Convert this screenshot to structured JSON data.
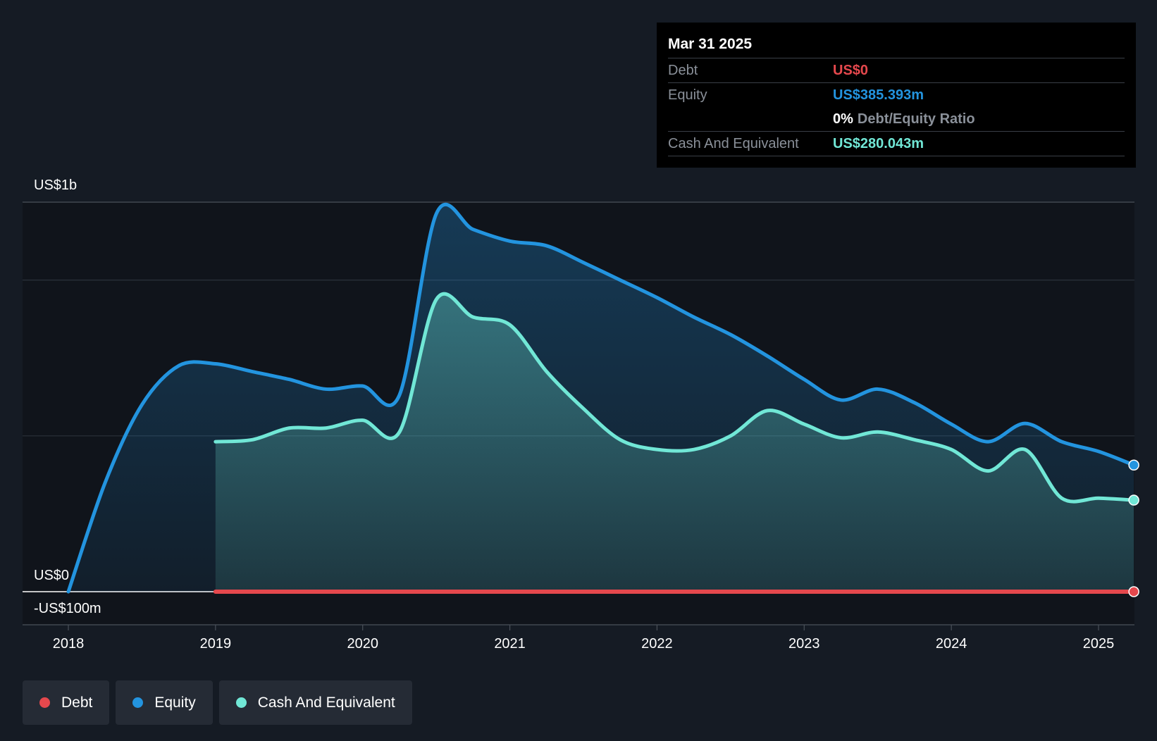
{
  "tooltip": {
    "date": "Mar 31 2025",
    "debt_label": "Debt",
    "debt_value": "US$0",
    "equity_label": "Equity",
    "equity_value": "US$385.393m",
    "ratio_value": "0%",
    "ratio_label": "Debt/Equity Ratio",
    "cash_label": "Cash And Equivalent",
    "cash_value": "US$280.043m"
  },
  "legend": [
    {
      "label": "Debt",
      "color": "#e5484d"
    },
    {
      "label": "Equity",
      "color": "#2394df"
    },
    {
      "label": "Cash And Equivalent",
      "color": "#71e7d6"
    }
  ],
  "chart_data": {
    "type": "area",
    "y_labels": {
      "top": "US$1b",
      "zero": "US$0",
      "bottom": "-US$100m"
    },
    "ylim": [
      -100,
      1000
    ],
    "xlim": [
      2017.69,
      2025.24
    ],
    "x_ticks": [
      "2018",
      "2019",
      "2020",
      "2021",
      "2022",
      "2023",
      "2024",
      "2025"
    ],
    "grid": true,
    "series": [
      {
        "name": "Equity",
        "color": "#2394df",
        "x": [
          2018.0,
          2018.25,
          2018.5,
          2018.75,
          2019.0,
          2019.25,
          2019.5,
          2019.75,
          2020.0,
          2020.25,
          2020.5,
          2020.75,
          2021.0,
          2021.25,
          2021.5,
          2021.75,
          2022.0,
          2022.25,
          2022.5,
          2022.75,
          2023.0,
          2023.25,
          2023.5,
          2023.75,
          2024.0,
          2024.25,
          2024.5,
          2024.75,
          2025.0,
          2025.24
        ],
        "y": [
          0,
          280,
          480,
          580,
          585,
          565,
          545,
          520,
          528,
          505,
          970,
          930,
          900,
          888,
          845,
          800,
          755,
          705,
          660,
          605,
          545,
          492,
          520,
          485,
          430,
          385,
          432,
          385,
          360,
          325
        ]
      },
      {
        "name": "Cash And Equivalent",
        "color": "#71e7d6",
        "x": [
          2019.0,
          2019.25,
          2019.5,
          2019.75,
          2020.0,
          2020.25,
          2020.5,
          2020.75,
          2021.0,
          2021.25,
          2021.5,
          2021.75,
          2022.0,
          2022.25,
          2022.5,
          2022.75,
          2023.0,
          2023.25,
          2023.5,
          2023.75,
          2024.0,
          2024.25,
          2024.5,
          2024.75,
          2025.0,
          2025.24
        ],
        "y": [
          385,
          390,
          420,
          420,
          440,
          410,
          750,
          705,
          685,
          565,
          470,
          390,
          365,
          365,
          400,
          465,
          430,
          395,
          410,
          390,
          365,
          310,
          365,
          240,
          240,
          235
        ]
      },
      {
        "name": "Debt",
        "color": "#e5484d",
        "x": [
          2019.0,
          2025.24
        ],
        "y": [
          0,
          0
        ]
      }
    ]
  }
}
